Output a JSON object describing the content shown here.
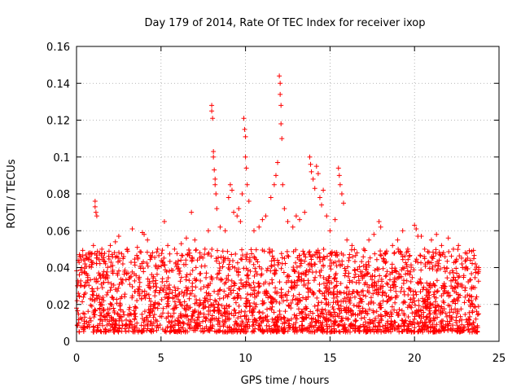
{
  "chart_data": {
    "type": "scatter",
    "title": "Day 179 of 2014, Rate Of TEC Index for receiver ixop",
    "xlabel": "GPS time / hours",
    "ylabel": "ROTI / TECUs",
    "xlim": [
      0,
      25
    ],
    "ylim": [
      0,
      0.16
    ],
    "x_ticks": [
      0,
      5,
      10,
      15,
      20,
      25
    ],
    "x_tick_labels": [
      "0",
      "5",
      "10",
      "15",
      "20",
      "25"
    ],
    "y_ticks": [
      0,
      0.02,
      0.04,
      0.06,
      0.08,
      0.1,
      0.12,
      0.14,
      0.16
    ],
    "y_tick_labels": [
      "0",
      "0.02",
      "0.04",
      "0.06",
      "0.08",
      "0.1",
      "0.12",
      "0.14",
      "0.16"
    ],
    "grid": true,
    "marker": "+",
    "color": "#ff0000",
    "series": [
      {
        "name": "ROTI",
        "data_range_hours": [
          0,
          23.8
        ],
        "baseline_points": [
          [
            0.0,
            0.018
          ],
          [
            0.1,
            0.044
          ],
          [
            0.2,
            0.046
          ],
          [
            0.3,
            0.04
          ],
          [
            0.5,
            0.042
          ],
          [
            0.8,
            0.048
          ],
          [
            1.0,
            0.052
          ],
          [
            1.1,
            0.076
          ],
          [
            1.1,
            0.073
          ],
          [
            1.15,
            0.07
          ],
          [
            1.2,
            0.068
          ],
          [
            1.5,
            0.05
          ],
          [
            2.0,
            0.052
          ],
          [
            2.3,
            0.054
          ],
          [
            2.5,
            0.057
          ],
          [
            3.0,
            0.05
          ],
          [
            3.3,
            0.061
          ],
          [
            3.6,
            0.051
          ],
          [
            3.9,
            0.059
          ],
          [
            4.0,
            0.058
          ],
          [
            4.2,
            0.055
          ],
          [
            4.5,
            0.048
          ],
          [
            4.8,
            0.05
          ],
          [
            5.2,
            0.065
          ],
          [
            5.4,
            0.052
          ],
          [
            5.8,
            0.05
          ],
          [
            6.2,
            0.053
          ],
          [
            6.5,
            0.056
          ],
          [
            6.8,
            0.07
          ],
          [
            7.0,
            0.055
          ],
          [
            7.3,
            0.048
          ],
          [
            7.6,
            0.05
          ],
          [
            7.8,
            0.06
          ],
          [
            8.0,
            0.128
          ],
          [
            8.0,
            0.125
          ],
          [
            8.05,
            0.121
          ],
          [
            8.1,
            0.103
          ],
          [
            8.1,
            0.1
          ],
          [
            8.15,
            0.093
          ],
          [
            8.2,
            0.088
          ],
          [
            8.2,
            0.085
          ],
          [
            8.25,
            0.08
          ],
          [
            8.3,
            0.072
          ],
          [
            8.5,
            0.062
          ],
          [
            8.8,
            0.06
          ],
          [
            9.0,
            0.078
          ],
          [
            9.1,
            0.085
          ],
          [
            9.2,
            0.082
          ],
          [
            9.3,
            0.07
          ],
          [
            9.5,
            0.068
          ],
          [
            9.6,
            0.072
          ],
          [
            9.7,
            0.065
          ],
          [
            9.8,
            0.08
          ],
          [
            9.9,
            0.121
          ],
          [
            9.95,
            0.115
          ],
          [
            10.0,
            0.111
          ],
          [
            10.0,
            0.1
          ],
          [
            10.05,
            0.094
          ],
          [
            10.1,
            0.085
          ],
          [
            10.2,
            0.076
          ],
          [
            10.5,
            0.06
          ],
          [
            10.8,
            0.062
          ],
          [
            11.0,
            0.066
          ],
          [
            11.2,
            0.068
          ],
          [
            11.5,
            0.078
          ],
          [
            11.7,
            0.085
          ],
          [
            11.8,
            0.09
          ],
          [
            11.9,
            0.097
          ],
          [
            12.0,
            0.144
          ],
          [
            12.05,
            0.14
          ],
          [
            12.05,
            0.134
          ],
          [
            12.1,
            0.128
          ],
          [
            12.1,
            0.118
          ],
          [
            12.15,
            0.11
          ],
          [
            12.2,
            0.085
          ],
          [
            12.3,
            0.072
          ],
          [
            12.5,
            0.065
          ],
          [
            12.8,
            0.062
          ],
          [
            13.0,
            0.068
          ],
          [
            13.2,
            0.066
          ],
          [
            13.5,
            0.07
          ],
          [
            13.8,
            0.1
          ],
          [
            13.85,
            0.096
          ],
          [
            13.9,
            0.092
          ],
          [
            14.0,
            0.088
          ],
          [
            14.1,
            0.083
          ],
          [
            14.2,
            0.095
          ],
          [
            14.3,
            0.091
          ],
          [
            14.4,
            0.078
          ],
          [
            14.5,
            0.074
          ],
          [
            14.6,
            0.082
          ],
          [
            14.8,
            0.068
          ],
          [
            15.0,
            0.06
          ],
          [
            15.3,
            0.066
          ],
          [
            15.5,
            0.094
          ],
          [
            15.55,
            0.09
          ],
          [
            15.6,
            0.085
          ],
          [
            15.7,
            0.08
          ],
          [
            15.8,
            0.075
          ],
          [
            16.0,
            0.055
          ],
          [
            16.3,
            0.052
          ],
          [
            16.6,
            0.048
          ],
          [
            17.0,
            0.05
          ],
          [
            17.3,
            0.055
          ],
          [
            17.6,
            0.058
          ],
          [
            17.9,
            0.065
          ],
          [
            18.0,
            0.062
          ],
          [
            18.3,
            0.048
          ],
          [
            18.7,
            0.052
          ],
          [
            19.0,
            0.055
          ],
          [
            19.3,
            0.06
          ],
          [
            19.6,
            0.05
          ],
          [
            20.0,
            0.063
          ],
          [
            20.1,
            0.061
          ],
          [
            20.2,
            0.057
          ],
          [
            20.4,
            0.057
          ],
          [
            20.6,
            0.05
          ],
          [
            21.0,
            0.055
          ],
          [
            21.3,
            0.058
          ],
          [
            21.6,
            0.052
          ],
          [
            22.0,
            0.056
          ],
          [
            22.3,
            0.05
          ],
          [
            22.6,
            0.052
          ],
          [
            23.0,
            0.048
          ],
          [
            23.3,
            0.044
          ],
          [
            23.6,
            0.042
          ],
          [
            23.8,
            0.04
          ]
        ],
        "dense_band": {
          "description": "many points densely filling between these values",
          "y_min_typical": 0.005,
          "y_max_typical": 0.05
        }
      }
    ]
  }
}
